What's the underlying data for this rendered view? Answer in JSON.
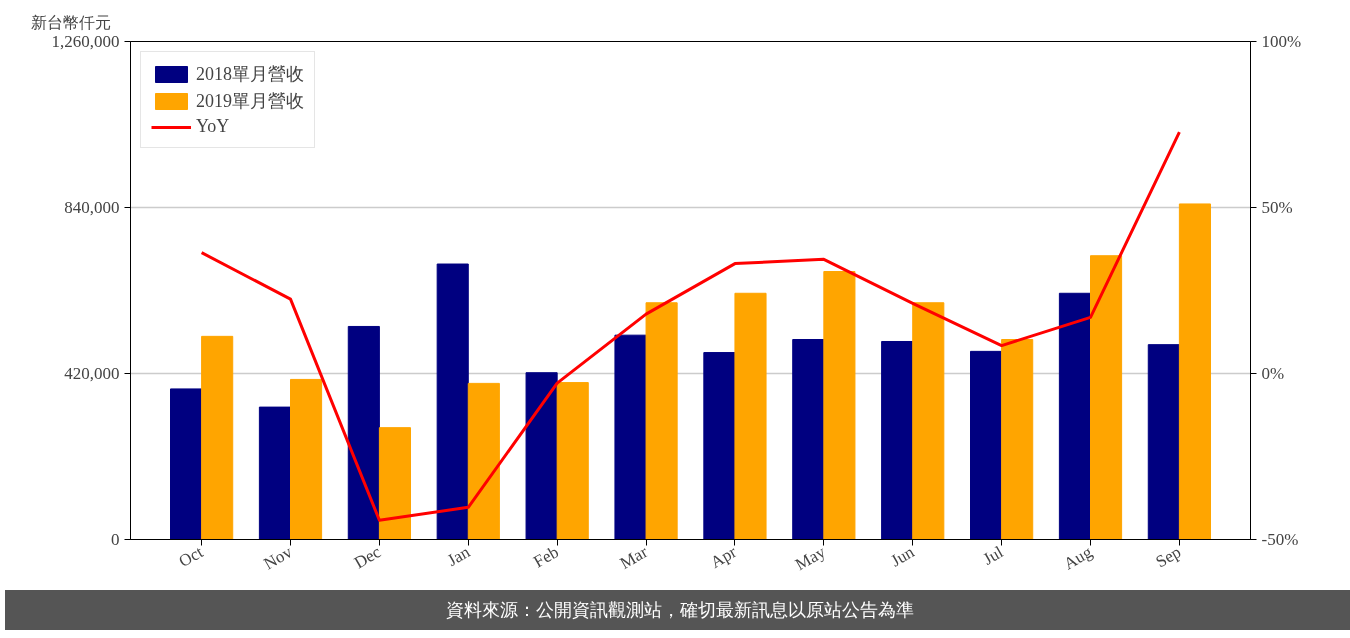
{
  "chart_data": {
    "type": "bar",
    "ylabel": "新台幣仟元",
    "categories": [
      "Oct",
      "Nov",
      "Dec",
      "Jan",
      "Feb",
      "Mar",
      "Apr",
      "May",
      "Jun",
      "Jul",
      "Aug",
      "Sep"
    ],
    "series": [
      {
        "name": "2018單月營收",
        "color": "#000080",
        "values": [
          381000,
          335000,
          539000,
          697000,
          422000,
          517000,
          473000,
          506000,
          501000,
          476000,
          623000,
          493000
        ]
      },
      {
        "name": "2019單月營收",
        "color": "#ffa500",
        "values": [
          514000,
          405000,
          283000,
          395000,
          397000,
          599000,
          623000,
          678000,
          599000,
          506000,
          718000,
          849000
        ]
      },
      {
        "name": "YoY",
        "type": "line",
        "axis": "y2",
        "color": "#ff0000",
        "values": [
          36.4,
          22.4,
          -44.2,
          -40.3,
          -2.9,
          17.9,
          33.1,
          34.4,
          21.1,
          8.4,
          16.9,
          72.7
        ]
      }
    ],
    "ylim": [
      0,
      1260000
    ],
    "yticks": [
      {
        "value": 0,
        "label": "0"
      },
      {
        "value": 420000,
        "label": "420,000"
      },
      {
        "value": 840000,
        "label": "840,000"
      },
      {
        "value": 1260000,
        "label": "1,260,000"
      }
    ],
    "y2lim": [
      -50,
      100
    ],
    "y2ticks": [
      {
        "value": -50,
        "label": "-50%"
      },
      {
        "value": 0,
        "label": "0%"
      },
      {
        "value": 50,
        "label": "50%"
      },
      {
        "value": 100,
        "label": "100%"
      }
    ],
    "grid": "y",
    "legend": "top left",
    "line_style": "solid",
    "annotations": [
      "資料來源：公開資訊觀測站，確切最新訊息以原站公告為準"
    ]
  }
}
